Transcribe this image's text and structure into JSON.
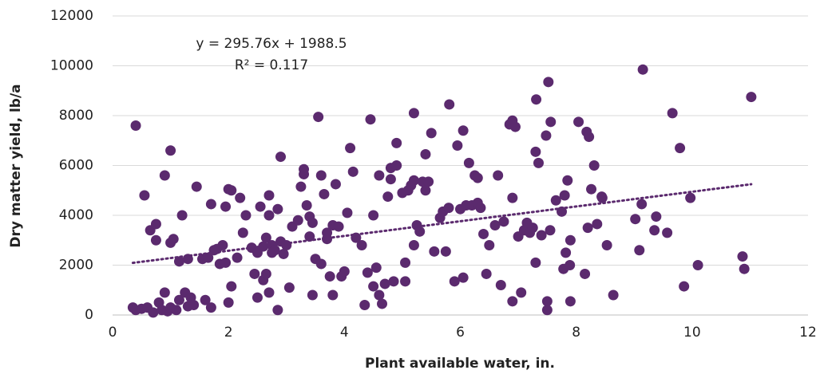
{
  "chart_data": {
    "type": "scatter",
    "x_label": "Plant available water, in.",
    "y_label": "Dry matter yield, lb/a",
    "color": "#5b2a6e",
    "x": [
      0.35,
      0.4,
      0.4,
      0.5,
      0.55,
      0.6,
      0.65,
      0.7,
      0.75,
      0.75,
      0.8,
      0.85,
      0.9,
      0.9,
      0.95,
      1.0,
      1.0,
      1.0,
      1.05,
      1.1,
      1.15,
      1.15,
      1.2,
      1.25,
      1.3,
      1.3,
      1.35,
      1.4,
      1.45,
      1.55,
      1.6,
      1.65,
      1.7,
      1.7,
      1.75,
      1.8,
      1.85,
      1.9,
      1.95,
      1.95,
      2.0,
      2.0,
      2.05,
      2.05,
      2.15,
      2.2,
      2.25,
      2.3,
      2.4,
      2.45,
      2.5,
      2.5,
      2.55,
      2.6,
      2.6,
      2.65,
      2.65,
      2.7,
      2.7,
      2.7,
      2.75,
      2.75,
      2.8,
      2.85,
      2.85,
      2.9,
      2.9,
      2.95,
      3.0,
      3.05,
      3.1,
      3.2,
      3.25,
      3.3,
      3.3,
      3.35,
      3.4,
      3.4,
      3.45,
      3.45,
      3.5,
      3.55,
      3.6,
      3.6,
      3.65,
      3.7,
      3.7,
      3.75,
      3.8,
      3.8,
      3.85,
      3.9,
      3.95,
      4.0,
      4.05,
      4.1,
      4.15,
      4.2,
      4.3,
      4.35,
      4.4,
      4.45,
      4.5,
      4.5,
      4.55,
      4.6,
      4.6,
      4.65,
      4.7,
      4.75,
      4.8,
      4.8,
      4.85,
      4.9,
      4.9,
      5.0,
      5.05,
      5.05,
      5.1,
      5.15,
      5.2,
      5.2,
      5.25,
      5.2,
      5.3,
      5.35,
      5.4,
      5.4,
      5.45,
      5.5,
      5.55,
      5.65,
      5.7,
      5.75,
      5.8,
      5.81,
      5.9,
      5.95,
      6.0,
      6.05,
      6.05,
      6.1,
      6.15,
      6.2,
      6.25,
      6.3,
      6.3,
      6.35,
      6.4,
      6.45,
      6.5,
      6.6,
      6.65,
      6.7,
      6.75,
      6.85,
      6.9,
      6.9,
      6.9,
      6.95,
      7.0,
      7.05,
      7.1,
      7.15,
      7.2,
      7.25,
      7.3,
      7.3,
      7.35,
      7.4,
      7.31,
      7.5,
      7.5,
      7.55,
      7.48,
      7.52,
      7.65,
      7.56,
      7.75,
      7.8,
      7.85,
      7.78,
      7.82,
      7.9,
      7.89,
      7.9,
      8.04,
      8.15,
      8.18,
      8.22,
      8.2,
      8.26,
      8.31,
      8.36,
      8.44,
      8.45,
      8.53,
      8.64,
      9.13,
      9.15,
      9.02,
      9.09,
      9.35,
      9.38,
      9.57,
      9.66,
      9.79,
      9.86,
      9.97,
      10.1,
      10.87,
      10.9,
      11.02
    ],
    "values": [
      300,
      7600,
      200,
      250,
      4800,
      300,
      3400,
      100,
      3650,
      3000,
      500,
      200,
      900,
      5600,
      150,
      300,
      6600,
      2900,
      3050,
      200,
      2150,
      600,
      4000,
      900,
      2250,
      350,
      700,
      400,
      5150,
      2250,
      600,
      2300,
      4450,
      300,
      2600,
      2650,
      2050,
      2800,
      4350,
      2100,
      5050,
      500,
      5000,
      1150,
      2300,
      4700,
      3300,
      4000,
      2700,
      1650,
      700,
      2500,
      4350,
      1400,
      2750,
      1650,
      3100,
      4800,
      4000,
      900,
      2800,
      2500,
      2600,
      4250,
      200,
      2950,
      6350,
      2450,
      2800,
      1100,
      3550,
      3800,
      5150,
      5650,
      5850,
      4400,
      3950,
      3150,
      3700,
      800,
      2250,
      7950,
      2050,
      5600,
      4850,
      3300,
      3050,
      1550,
      800,
      3600,
      5250,
      3550,
      1550,
      1750,
      4100,
      6700,
      5750,
      3100,
      2800,
      400,
      1700,
      7850,
      1150,
      4000,
      1900,
      5600,
      800,
      450,
      1250,
      4750,
      5900,
      5450,
      1350,
      6900,
      6000,
      4900,
      1350,
      2100,
      5000,
      5200,
      5400,
      2800,
      3600,
      8100,
      3350,
      5350,
      6450,
      5000,
      5350,
      7300,
      2550,
      3900,
      4150,
      2550,
      4300,
      8450,
      1350,
      6800,
      4250,
      1500,
      7400,
      4400,
      6100,
      4400,
      5600,
      4500,
      5500,
      4300,
      3250,
      1650,
      2800,
      3600,
      5600,
      1200,
      3750,
      7650,
      7800,
      4700,
      550,
      7550,
      3150,
      900,
      3400,
      3700,
      3300,
      3500,
      6550,
      2100,
      6100,
      3200,
      8650,
      550,
      200,
      3400,
      7200,
      9350,
      4600,
      7750,
      4150,
      4800,
      5400,
      1850,
      2500,
      550,
      2000,
      3000,
      7750,
      1650,
      7350,
      7150,
      3500,
      5050,
      6000,
      3650,
      4750,
      4700,
      2800,
      800,
      4450,
      9850,
      3850,
      2600,
      3400,
      3950,
      3300,
      8100,
      6700,
      1150,
      4700,
      2000,
      2350,
      1850,
      8750
    ],
    "trendline": {
      "equation": "y = 295.76x + 1988.5",
      "r_squared": "R² = 0.117",
      "slope": 295.76,
      "intercept": 1988.5
    },
    "xlim": [
      0,
      12
    ],
    "xticks": [
      0,
      2,
      4,
      6,
      8,
      10,
      12
    ],
    "ylim": [
      0,
      12000
    ],
    "yticks": [
      0,
      2000,
      4000,
      6000,
      8000,
      10000,
      12000
    ],
    "grid": true
  }
}
